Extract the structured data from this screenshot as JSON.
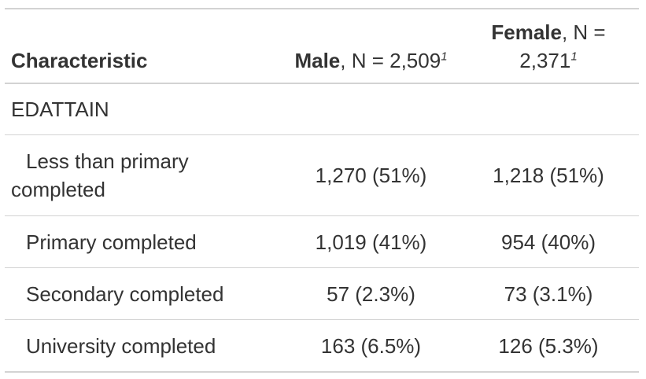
{
  "table": {
    "header": {
      "characteristic": "Characteristic",
      "male_label": "Male",
      "male_n": ", N = 2,509",
      "female_label": "Female",
      "female_n": ", N = 2,371",
      "footnote_mark": "1"
    },
    "group_label": "EDATTAIN",
    "rows": [
      {
        "label": "Less than primary completed",
        "male": "1,270 (51%)",
        "female": "1,218 (51%)"
      },
      {
        "label": "Primary completed",
        "male": "1,019 (41%)",
        "female": "954 (40%)"
      },
      {
        "label": "Secondary completed",
        "male": "57 (2.3%)",
        "female": "73 (3.1%)"
      },
      {
        "label": "University completed",
        "male": "163 (6.5%)",
        "female": "126 (5.3%)"
      }
    ]
  }
}
